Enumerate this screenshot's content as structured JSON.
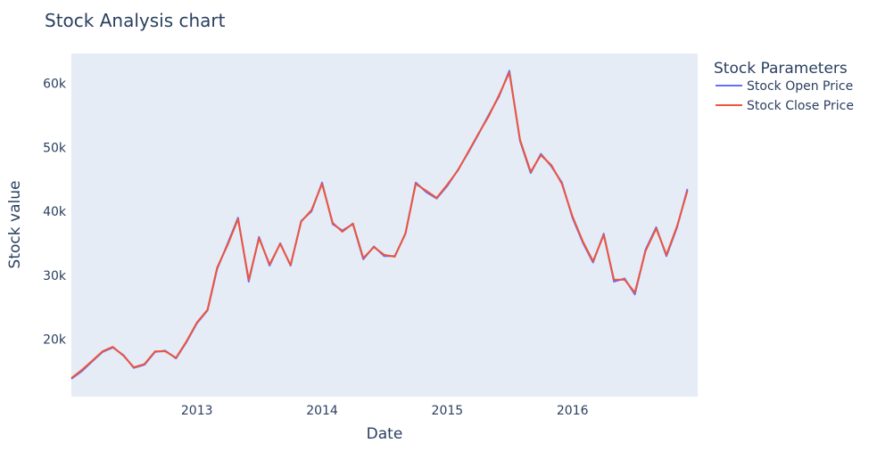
{
  "chart_data": {
    "type": "line",
    "title": "Stock Analysis chart",
    "xlabel": "Date",
    "ylabel": "Stock value",
    "x_tick_labels": [
      "2013",
      "2014",
      "2015",
      "2016"
    ],
    "y_tick_labels": [
      "20k",
      "30k",
      "40k",
      "50k",
      "60k"
    ],
    "y_ticks": [
      20000,
      30000,
      40000,
      50000,
      60000
    ],
    "x_range": [
      "2012-01-01",
      "2016-12-31"
    ],
    "ylim": [
      11000,
      64700
    ],
    "grid": false,
    "legend": {
      "title": "Stock Parameters",
      "placement": "right"
    },
    "colors": {
      "plot_bg": "#e5ecf6",
      "open": "#636efa",
      "close": "#ef553b"
    },
    "x": [
      "2012-01-01",
      "2012-02-01",
      "2012-03-01",
      "2012-04-01",
      "2012-05-01",
      "2012-06-01",
      "2012-07-01",
      "2012-08-01",
      "2012-09-01",
      "2012-10-01",
      "2012-11-01",
      "2012-12-01",
      "2013-01-01",
      "2013-02-01",
      "2013-03-01",
      "2013-04-01",
      "2013-05-01",
      "2013-06-01",
      "2013-07-01",
      "2013-08-01",
      "2013-09-01",
      "2013-10-01",
      "2013-11-01",
      "2013-12-01",
      "2014-01-01",
      "2014-02-01",
      "2014-03-01",
      "2014-04-01",
      "2014-05-01",
      "2014-06-01",
      "2014-07-01",
      "2014-08-01",
      "2014-09-01",
      "2014-10-01",
      "2014-11-01",
      "2014-12-01",
      "2015-01-01",
      "2015-02-01",
      "2015-03-01",
      "2015-04-01",
      "2015-05-01",
      "2015-06-01",
      "2015-07-01",
      "2015-08-01",
      "2015-09-01",
      "2015-10-01",
      "2015-11-01",
      "2015-12-01",
      "2016-01-01",
      "2016-02-01",
      "2016-03-01",
      "2016-04-01",
      "2016-05-01",
      "2016-06-01",
      "2016-07-01",
      "2016-08-01",
      "2016-09-01",
      "2016-10-01",
      "2016-11-01",
      "2016-12-01"
    ],
    "series": [
      {
        "name": "Stock Open Price",
        "values": [
          13800,
          15000,
          16500,
          18000,
          18700,
          17500,
          15500,
          16000,
          18000,
          18200,
          17000,
          19500,
          22500,
          24500,
          31000,
          35000,
          39000,
          29000,
          36000,
          31500,
          35000,
          31500,
          38500,
          40000,
          44500,
          38000,
          37000,
          38000,
          32500,
          34500,
          33000,
          33000,
          36500,
          44500,
          43000,
          42000,
          44000,
          46500,
          49000,
          52000,
          55000,
          58000,
          62000,
          51000,
          46000,
          49000,
          47000,
          44500,
          39000,
          35000,
          32000,
          36500,
          29000,
          29500,
          27000,
          34000,
          37500,
          33000,
          37500,
          43500
        ]
      },
      {
        "name": "Stock Close Price",
        "values": [
          13900,
          15200,
          16600,
          18100,
          18800,
          17400,
          15600,
          16100,
          18100,
          18100,
          17100,
          19600,
          22600,
          24600,
          31200,
          34800,
          38800,
          29300,
          35800,
          31700,
          34900,
          31600,
          38400,
          40200,
          44300,
          38200,
          36800,
          38100,
          32700,
          34400,
          33200,
          32900,
          36600,
          44300,
          43200,
          42100,
          44200,
          46400,
          49100,
          52100,
          54800,
          58200,
          61700,
          51200,
          46200,
          48800,
          47200,
          44300,
          39200,
          35200,
          32200,
          36300,
          29300,
          29300,
          27300,
          33800,
          37300,
          33200,
          37700,
          43200
        ]
      }
    ]
  }
}
